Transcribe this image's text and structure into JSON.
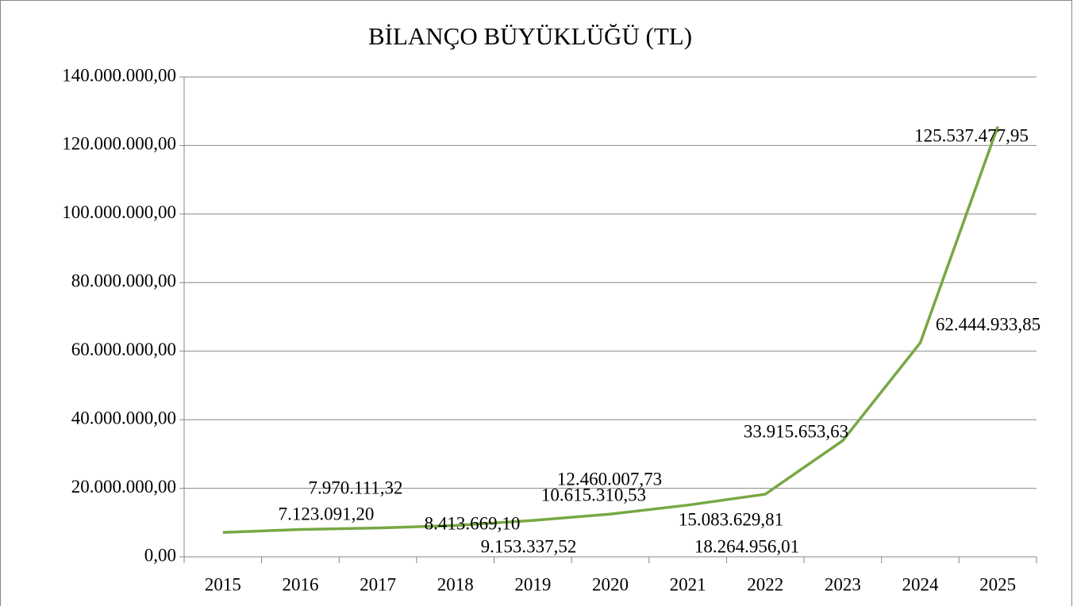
{
  "chart_data": {
    "type": "line",
    "title": "BİLANÇO BÜYÜKLÜĞÜ (TL)",
    "categories": [
      "2015",
      "2016",
      "2017",
      "2018",
      "2019",
      "2020",
      "2021",
      "2022",
      "2023",
      "2024",
      "2025"
    ],
    "values": [
      7123091.2,
      7970111.32,
      8413669.1,
      9153337.52,
      10615310.53,
      12460007.73,
      15083629.81,
      18264956.01,
      33915653.63,
      62444933.85,
      125537477.95
    ],
    "value_labels": [
      "7.123.091,20",
      "7.970.111,32",
      "8.413.669,10",
      "9.153.337,52",
      "10.615.310,53",
      "12.460.007,73",
      "15.083.629,81",
      "18.264.956,01",
      "33.915.653,63",
      "62.444.933,85",
      "125.537.477,95"
    ],
    "color": "#77a844",
    "ylim": [
      0,
      140000000
    ],
    "yticks": [
      {
        "value": 0,
        "label": "0,00"
      },
      {
        "value": 20000000,
        "label": "20.000.000,00"
      },
      {
        "value": 40000000,
        "label": "40.000.000,00"
      },
      {
        "value": 60000000,
        "label": "60.000.000,00"
      },
      {
        "value": 80000000,
        "label": "80.000.000,00"
      },
      {
        "value": 100000000,
        "label": "100.000.000,00"
      },
      {
        "value": 120000000,
        "label": "120.000.000,00"
      },
      {
        "value": 140000000,
        "label": "140.000.000,00"
      }
    ],
    "grid": true
  }
}
